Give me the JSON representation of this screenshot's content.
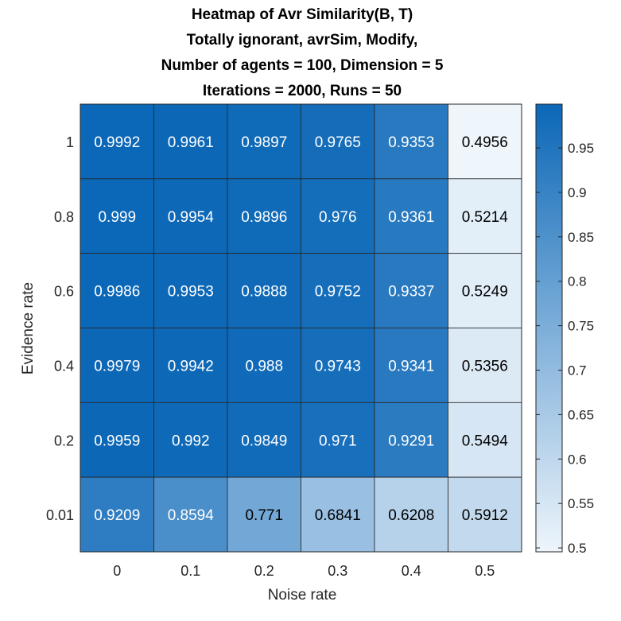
{
  "chart_data": {
    "type": "heatmap",
    "title": [
      "Heatmap of Avr Similarity(B, T)",
      "Totally ignorant, avrSim, Modify,",
      "Number of agents = 100, Dimension = 5",
      "Iterations = 2000, Runs = 50"
    ],
    "xlabel": "Noise rate",
    "ylabel": "Evidence rate",
    "x_categories": [
      "0",
      "0.1",
      "0.2",
      "0.3",
      "0.4",
      "0.5"
    ],
    "y_categories": [
      "1",
      "0.8",
      "0.6",
      "0.4",
      "0.2",
      "0.01"
    ],
    "values": [
      [
        "0.9992",
        "0.9961",
        "0.9897",
        "0.9765",
        "0.9353",
        "0.4956"
      ],
      [
        "0.999",
        "0.9954",
        "0.9896",
        "0.976",
        "0.9361",
        "0.5214"
      ],
      [
        "0.9986",
        "0.9953",
        "0.9888",
        "0.9752",
        "0.9337",
        "0.5249"
      ],
      [
        "0.9979",
        "0.9942",
        "0.988",
        "0.9743",
        "0.9341",
        "0.5356"
      ],
      [
        "0.9959",
        "0.992",
        "0.9849",
        "0.971",
        "0.9291",
        "0.5494"
      ],
      [
        "0.9209",
        "0.8594",
        "0.771",
        "0.6841",
        "0.6208",
        "0.5912"
      ]
    ],
    "colorbar": {
      "min": 0.4956,
      "max": 0.9992,
      "ticks": [
        "0.5",
        "0.55",
        "0.6",
        "0.65",
        "0.7",
        "0.75",
        "0.8",
        "0.85",
        "0.9",
        "0.95"
      ],
      "low_color": "#eef5fb",
      "high_color": "#0b67b7"
    },
    "grid": true,
    "legend": "colorbar-right"
  }
}
